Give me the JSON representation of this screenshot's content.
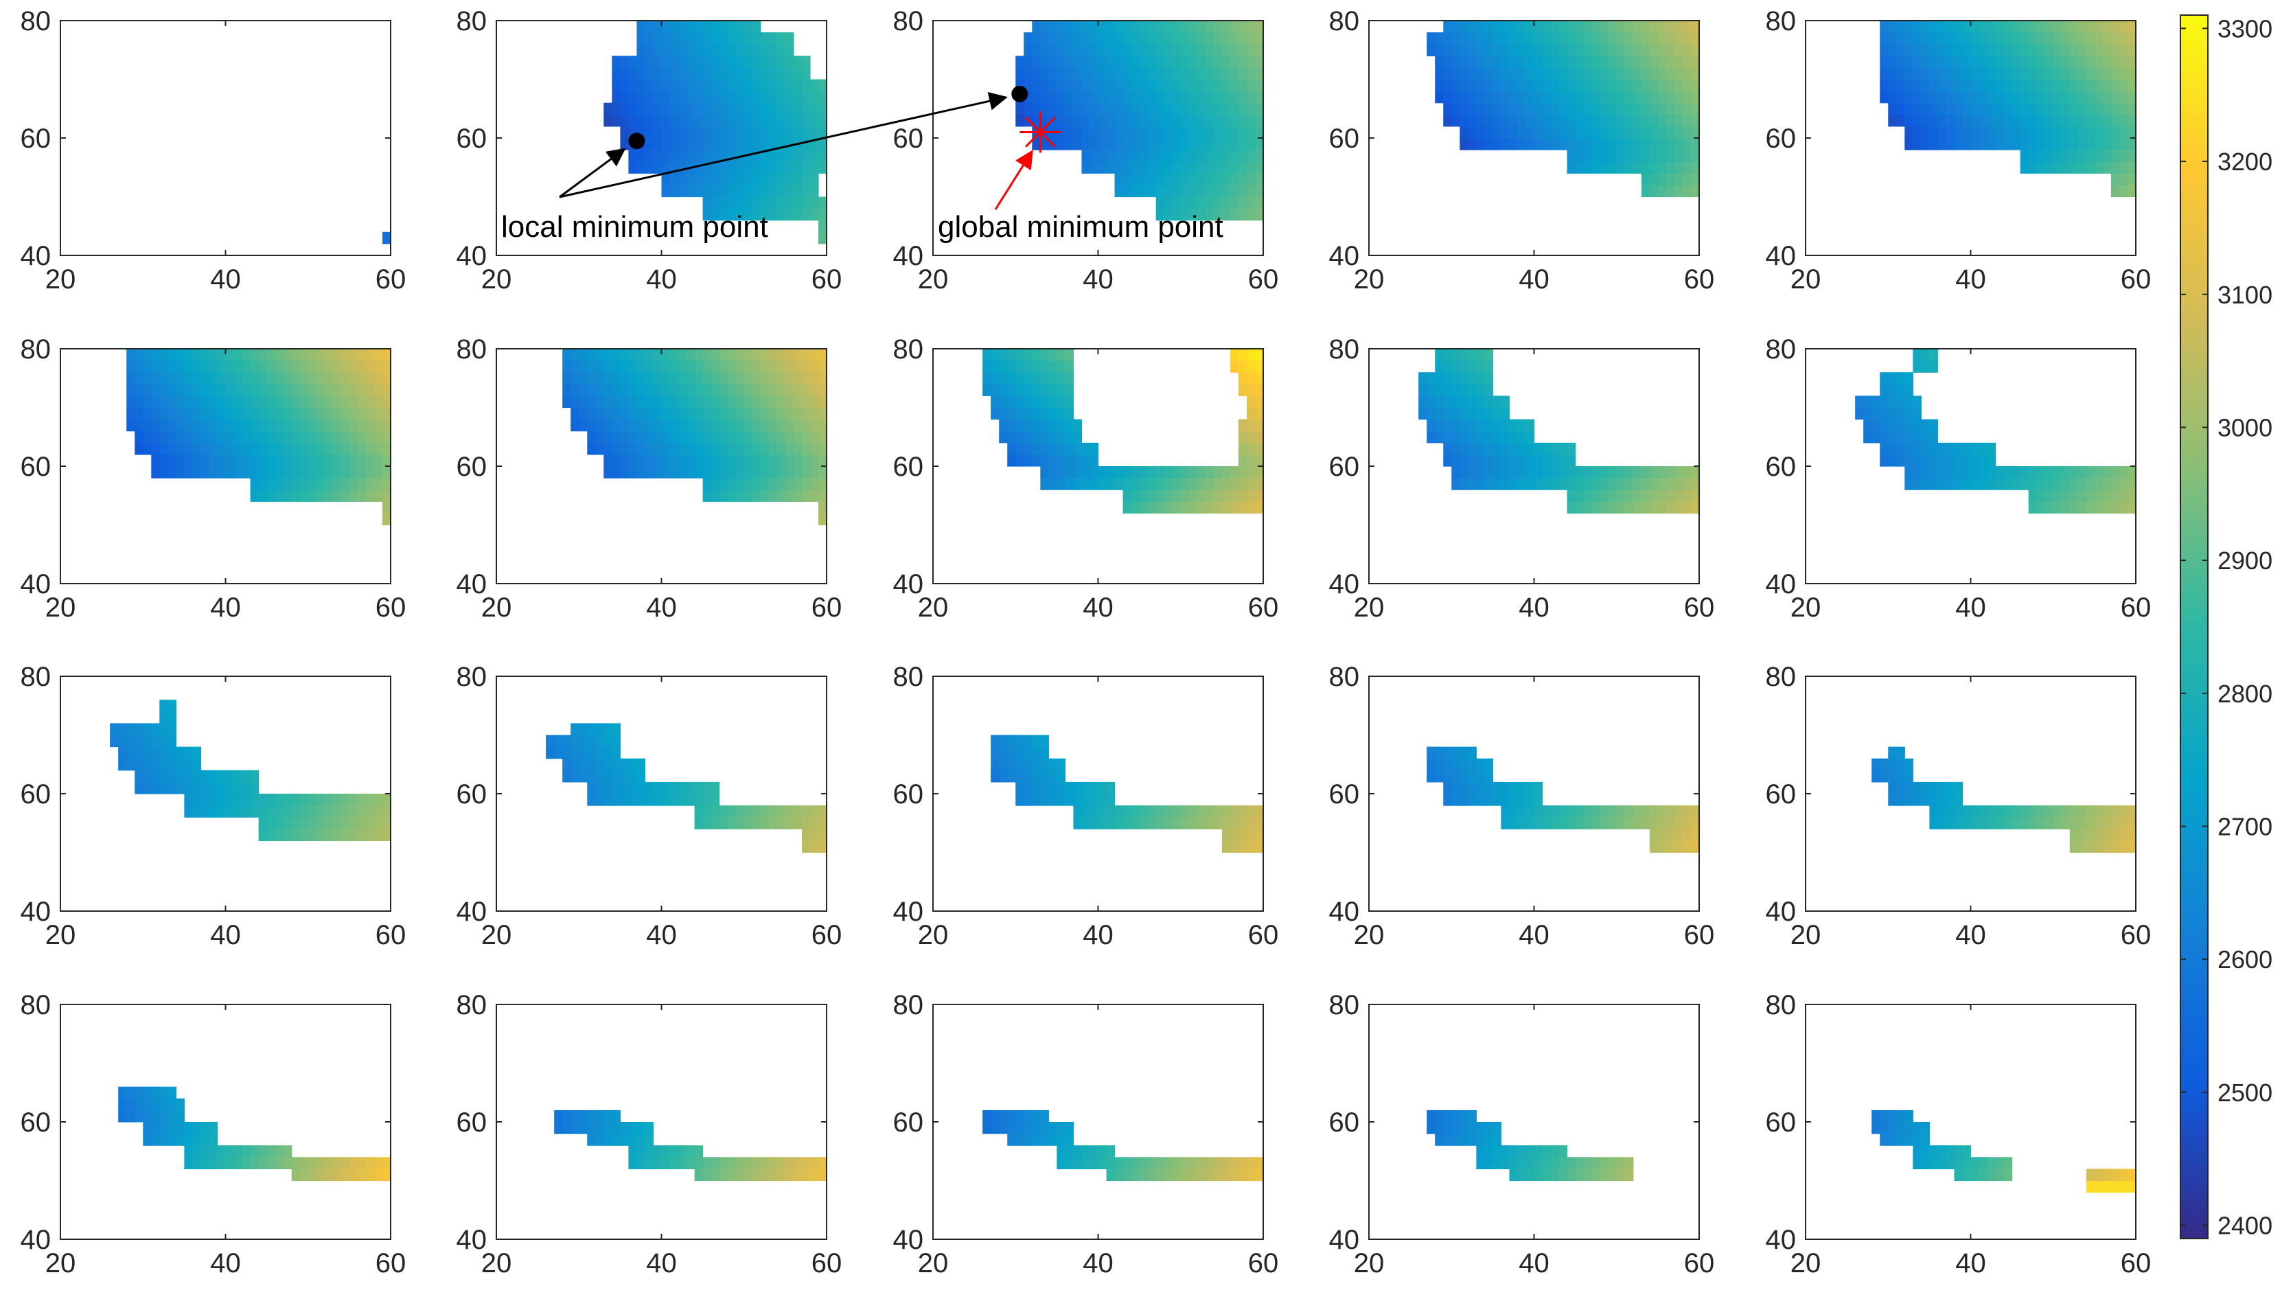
{
  "chart_data": {
    "type": "heatmap",
    "layout": {
      "rows": 4,
      "cols": 5
    },
    "xlim": [
      20,
      60
    ],
    "ylim": [
      40,
      80
    ],
    "x_ticks": [
      "20",
      "40",
      "60"
    ],
    "y_ticks": [
      "40",
      "60",
      "80"
    ],
    "colorbar": {
      "range": [
        2390,
        3310
      ],
      "ticks": [
        "2400",
        "2500",
        "2600",
        "2700",
        "2800",
        "2900",
        "3000",
        "3100",
        "3200",
        "3300"
      ],
      "colormap": "parula"
    },
    "annotations": {
      "local_label": "local minimum point",
      "global_label": "global minimum point",
      "local_point": [
        37,
        59.5
      ],
      "global_point": [
        30.5,
        67.5
      ],
      "global_star": [
        33,
        61
      ],
      "marker_color": "#000000",
      "star_color": "#ff0000"
    },
    "panels": [
      {
        "row": 1,
        "col": 1,
        "cells": [
          [
            59,
            42,
            2560
          ]
        ]
      },
      {
        "row": 1,
        "col": 2,
        "region": {
          "rows": [
            [
              42,
              59,
              60
            ],
            [
              46,
              45,
              60
            ],
            [
              50,
              40,
              59
            ],
            [
              54,
              36,
              60
            ],
            [
              58,
              35,
              60
            ],
            [
              62,
              33,
              60
            ],
            [
              66,
              34,
              60
            ],
            [
              70,
              34,
              58
            ],
            [
              74,
              37,
              56
            ],
            [
              78,
              37,
              52
            ]
          ]
        },
        "value_model": {
          "x_min": 33,
          "y_min": 60,
          "base": 2440,
          "gx": 14,
          "gy": 6
        }
      },
      {
        "row": 1,
        "col": 3,
        "region": {
          "rows": [
            [
              46,
              47,
              60
            ],
            [
              50,
              42,
              60
            ],
            [
              54,
              38,
              60
            ],
            [
              58,
              32,
              60
            ],
            [
              62,
              30,
              60
            ],
            [
              66,
              30,
              60
            ],
            [
              70,
              30,
              60
            ],
            [
              74,
              31,
              60
            ],
            [
              78,
              32,
              60
            ]
          ]
        },
        "value_model": {
          "x_min": 30,
          "y_min": 60,
          "base": 2450,
          "gx": 14,
          "gy": 7
        }
      },
      {
        "row": 1,
        "col": 4,
        "region": {
          "rows": [
            [
              50,
              53,
              60
            ],
            [
              54,
              44,
              60
            ],
            [
              58,
              31,
              60
            ],
            [
              62,
              29,
              60
            ],
            [
              66,
              28,
              60
            ],
            [
              70,
              28,
              60
            ],
            [
              74,
              27,
              60
            ],
            [
              78,
              29,
              60
            ]
          ]
        },
        "value_model": {
          "x_min": 28,
          "y_min": 58,
          "base": 2420,
          "gx": 15,
          "gy": 9
        }
      },
      {
        "row": 1,
        "col": 5,
        "region": {
          "rows": [
            [
              50,
              57,
              60
            ],
            [
              54,
              46,
              60
            ],
            [
              58,
              32,
              60
            ],
            [
              62,
              30,
              60
            ],
            [
              66,
              29,
              60
            ],
            [
              70,
              29,
              60
            ],
            [
              74,
              29,
              60
            ],
            [
              78,
              29,
              60
            ]
          ]
        },
        "value_model": {
          "x_min": 29,
          "y_min": 60,
          "base": 2430,
          "gx": 15,
          "gy": 10
        }
      },
      {
        "row": 2,
        "col": 1,
        "region": {
          "rows": [
            [
              50,
              59,
              60
            ],
            [
              54,
              43,
              60
            ],
            [
              58,
              31,
              60
            ],
            [
              62,
              29,
              60
            ],
            [
              66,
              28,
              60
            ],
            [
              70,
              28,
              60
            ],
            [
              74,
              28,
              60
            ],
            [
              78,
              28,
              60
            ]
          ]
        },
        "value_model": {
          "x_min": 28,
          "y_min": 60,
          "base": 2450,
          "gx": 16,
          "gy": 10
        }
      },
      {
        "row": 2,
        "col": 2,
        "region": {
          "rows": [
            [
              50,
              59,
              60
            ],
            [
              54,
              45,
              60
            ],
            [
              58,
              33,
              60
            ],
            [
              62,
              31,
              60
            ],
            [
              66,
              29,
              60
            ],
            [
              70,
              28,
              60
            ],
            [
              74,
              28,
              60
            ],
            [
              78,
              28,
              60
            ]
          ]
        },
        "value_model": {
          "x_min": 28,
          "y_min": 60,
          "base": 2450,
          "gx": 16,
          "gy": 10
        }
      },
      {
        "row": 2,
        "col": 3,
        "region": {
          "rows": [
            [
              52,
              43,
              60
            ],
            [
              56,
              33,
              60
            ],
            [
              60,
              29,
              40
            ],
            [
              60,
              57,
              60
            ],
            [
              64,
              28,
              38
            ],
            [
              64,
              57,
              60
            ],
            [
              68,
              27,
              37
            ],
            [
              68,
              58,
              60
            ],
            [
              72,
              26,
              37
            ],
            [
              72,
              57,
              60
            ],
            [
              76,
              26,
              37
            ],
            [
              76,
              56,
              60
            ],
            [
              80,
              26,
              37
            ],
            [
              80,
              53,
              59
            ]
          ]
        },
        "value_model": {
          "x_min": 26,
          "y_min": 60,
          "base": 2480,
          "gx": 16,
          "gy": 14
        }
      },
      {
        "row": 2,
        "col": 4,
        "region": {
          "rows": [
            [
              52,
              44,
              60
            ],
            [
              56,
              30,
              60
            ],
            [
              60,
              29,
              45
            ],
            [
              64,
              27,
              40
            ],
            [
              68,
              26,
              37
            ],
            [
              72,
              26,
              35
            ],
            [
              76,
              28,
              35
            ],
            [
              80,
              28,
              35
            ],
            [
              80,
              59,
              60
            ]
          ]
        },
        "value_model": {
          "x_min": 26,
          "y_min": 60,
          "base": 2520,
          "gx": 14,
          "gy": 12
        }
      },
      {
        "row": 2,
        "col": 5,
        "region": {
          "rows": [
            [
              52,
              47,
              60
            ],
            [
              56,
              32,
              60
            ],
            [
              60,
              29,
              43
            ],
            [
              64,
              27,
              36
            ],
            [
              68,
              26,
              34
            ],
            [
              72,
              29,
              33
            ],
            [
              76,
              33,
              36
            ],
            [
              80,
              33,
              36
            ]
          ]
        },
        "value_model": {
          "x_min": 26,
          "y_min": 60,
          "base": 2530,
          "gx": 13,
          "gy": 8
        }
      },
      {
        "row": 3,
        "col": 1,
        "region": {
          "rows": [
            [
              52,
              44,
              60
            ],
            [
              56,
              35,
              60
            ],
            [
              60,
              29,
              44
            ],
            [
              64,
              27,
              37
            ],
            [
              68,
              26,
              34
            ],
            [
              72,
              32,
              34
            ]
          ]
        },
        "value_model": {
          "x_min": 26,
          "y_min": 60,
          "base": 2560,
          "gx": 13,
          "gy": 6
        }
      },
      {
        "row": 3,
        "col": 2,
        "region": {
          "rows": [
            [
              50,
              57,
              60
            ],
            [
              54,
              44,
              60
            ],
            [
              58,
              31,
              47
            ],
            [
              62,
              28,
              38
            ],
            [
              66,
              26,
              35
            ],
            [
              68,
              29,
              35
            ]
          ]
        },
        "value_model": {
          "x_min": 26,
          "y_min": 60,
          "base": 2560,
          "gx": 14,
          "gy": 6
        }
      },
      {
        "row": 3,
        "col": 3,
        "region": {
          "rows": [
            [
              50,
              55,
              60
            ],
            [
              54,
              37,
              60
            ],
            [
              58,
              30,
              42
            ],
            [
              62,
              27,
              36
            ],
            [
              66,
              27,
              34
            ]
          ]
        },
        "value_model": {
          "x_min": 26,
          "y_min": 60,
          "base": 2560,
          "gx": 15,
          "gy": 6
        }
      },
      {
        "row": 3,
        "col": 4,
        "region": {
          "rows": [
            [
              50,
              54,
              60
            ],
            [
              54,
              36,
              60
            ],
            [
              58,
              29,
              41
            ],
            [
              62,
              27,
              35
            ],
            [
              64,
              27,
              33
            ]
          ]
        },
        "value_model": {
          "x_min": 26,
          "y_min": 60,
          "base": 2560,
          "gx": 15,
          "gy": 6
        }
      },
      {
        "row": 3,
        "col": 5,
        "region": {
          "rows": [
            [
              50,
              52,
              60
            ],
            [
              54,
              35,
              60
            ],
            [
              58,
              30,
              39
            ],
            [
              62,
              28,
              33
            ],
            [
              64,
              30,
              32
            ]
          ]
        },
        "value_model": {
          "x_min": 26,
          "y_min": 60,
          "base": 2560,
          "gx": 15,
          "gy": 6
        }
      },
      {
        "row": 4,
        "col": 1,
        "region": {
          "rows": [
            [
              50,
              48,
              60
            ],
            [
              52,
              35,
              48
            ],
            [
              56,
              30,
              39
            ],
            [
              60,
              27,
              35
            ],
            [
              62,
              27,
              34
            ]
          ]
        },
        "value_model": {
          "x_min": 26,
          "y_min": 60,
          "base": 2560,
          "gx": 17,
          "gy": 6
        }
      },
      {
        "row": 4,
        "col": 2,
        "region": {
          "rows": [
            [
              50,
              44,
              60
            ],
            [
              52,
              36,
              45
            ],
            [
              56,
              31,
              39
            ],
            [
              58,
              27,
              35
            ]
          ]
        },
        "value_model": {
          "x_min": 26,
          "y_min": 60,
          "base": 2560,
          "gx": 16,
          "gy": 6
        }
      },
      {
        "row": 4,
        "col": 3,
        "region": {
          "rows": [
            [
              50,
              41,
              60
            ],
            [
              52,
              35,
              42
            ],
            [
              56,
              29,
              37
            ],
            [
              58,
              26,
              34
            ]
          ]
        },
        "value_model": {
          "x_min": 26,
          "y_min": 60,
          "base": 2560,
          "gx": 16,
          "gy": 6
        }
      },
      {
        "row": 4,
        "col": 4,
        "region": {
          "rows": [
            [
              50,
              37,
              52
            ],
            [
              52,
              33,
              44
            ],
            [
              56,
              28,
              36
            ],
            [
              58,
              27,
              33
            ]
          ]
        },
        "value_model": {
          "x_min": 26,
          "y_min": 60,
          "base": 2560,
          "gx": 16,
          "gy": 6
        }
      },
      {
        "row": 4,
        "col": 5,
        "region": {
          "rows": [
            [
              48,
              54,
              60
            ],
            [
              50,
              38,
              45
            ],
            [
              52,
              33,
              40
            ],
            [
              56,
              29,
              35
            ],
            [
              58,
              28,
              33
            ]
          ]
        },
        "value_model": {
          "x_min": 26,
          "y_min": 60,
          "base": 2560,
          "gx": 17,
          "gy": 6
        },
        "cells": [
          [
            54,
            48,
            3240
          ],
          [
            55,
            48,
            3240
          ],
          [
            56,
            48,
            3240
          ],
          [
            57,
            48,
            3240
          ],
          [
            58,
            48,
            3240
          ],
          [
            59,
            48,
            3240
          ]
        ]
      }
    ]
  }
}
